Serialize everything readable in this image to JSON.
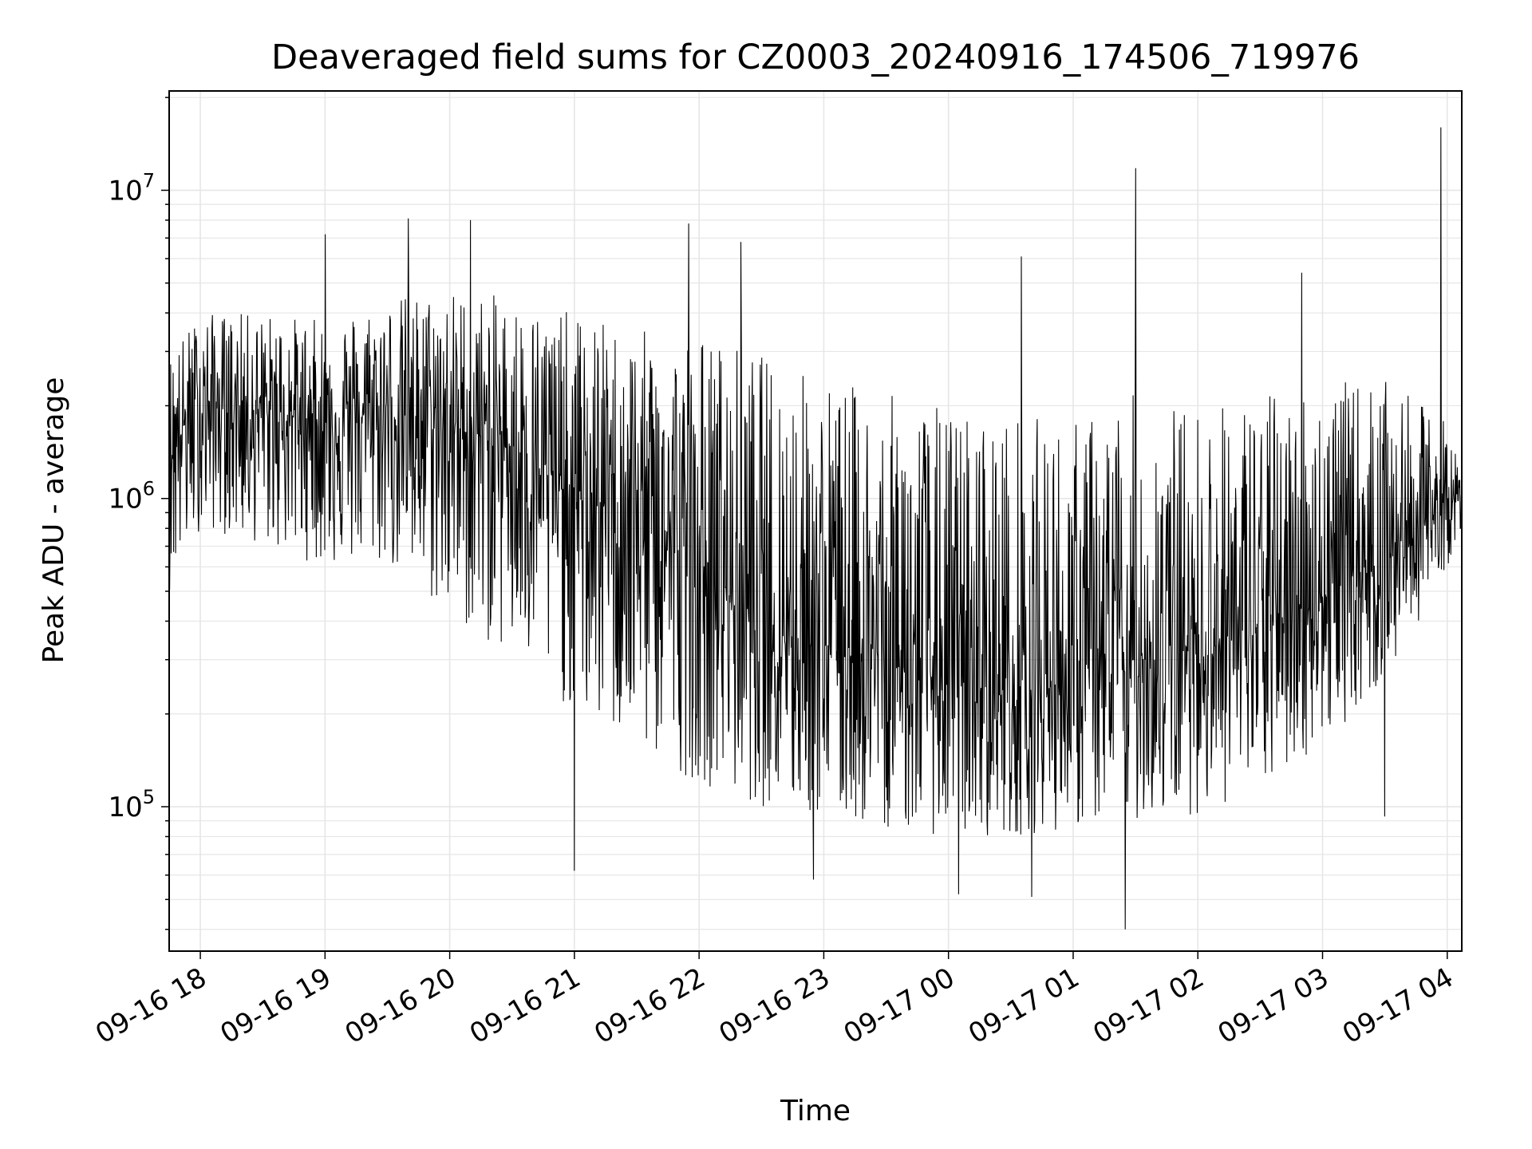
{
  "chart_data": {
    "type": "line",
    "title": "Deaveraged field sums for CZ0003_20240916_174506_719976",
    "xlabel": "Time",
    "ylabel": "Peak ADU - average",
    "y_scale": "log",
    "ylim": [
      34000,
      21000000
    ],
    "xlim": [
      "2024-09-16T17:45",
      "2024-09-17T04:07"
    ],
    "grid": true,
    "line_color": "#000000",
    "grid_color": "#e6e6e6",
    "x_ticks": [
      {
        "t": "2024-09-16T18:00",
        "label": "09-16 18"
      },
      {
        "t": "2024-09-16T19:00",
        "label": "09-16 19"
      },
      {
        "t": "2024-09-16T20:00",
        "label": "09-16 20"
      },
      {
        "t": "2024-09-16T21:00",
        "label": "09-16 21"
      },
      {
        "t": "2024-09-16T22:00",
        "label": "09-16 22"
      },
      {
        "t": "2024-09-16T23:00",
        "label": "09-16 23"
      },
      {
        "t": "2024-09-17T00:00",
        "label": "09-17 00"
      },
      {
        "t": "2024-09-17T01:00",
        "label": "09-17 01"
      },
      {
        "t": "2024-09-17T02:00",
        "label": "09-17 02"
      },
      {
        "t": "2024-09-17T03:00",
        "label": "09-17 03"
      },
      {
        "t": "2024-09-17T04:00",
        "label": "09-17 04"
      }
    ],
    "y_ticks": [
      {
        "value": 100000,
        "base": "10",
        "exp": "5"
      },
      {
        "value": 1000000,
        "base": "10",
        "exp": "6"
      },
      {
        "value": 10000000,
        "base": "10",
        "exp": "7"
      }
    ],
    "series": [
      {
        "x": [
          "2024-09-16T17:45",
          "2024-09-16T18:00",
          "2024-09-16T18:30",
          "2024-09-16T19:00",
          "2024-09-16T19:30",
          "2024-09-16T20:00",
          "2024-09-16T20:30",
          "2024-09-16T21:00",
          "2024-09-16T21:30",
          "2024-09-16T22:00",
          "2024-09-16T22:30",
          "2024-09-16T23:00",
          "2024-09-16T23:30",
          "2024-09-17T00:00",
          "2024-09-17T00:30",
          "2024-09-17T01:00",
          "2024-09-17T01:30",
          "2024-09-17T02:00",
          "2024-09-17T02:30",
          "2024-09-17T03:00",
          "2024-09-17T03:30",
          "2024-09-17T04:00",
          "2024-09-17T04:07"
        ],
        "y_median": [
          1500000,
          2000000,
          1900000,
          1800000,
          1900000,
          1700000,
          1500000,
          1000000,
          900000,
          600000,
          400000,
          350000,
          300000,
          250000,
          230000,
          260000,
          300000,
          330000,
          370000,
          480000,
          650000,
          950000,
          1000000
        ],
        "y_low": [
          500000,
          800000,
          700000,
          600000,
          600000,
          400000,
          300000,
          200000,
          150000,
          120000,
          100000,
          90000,
          85000,
          80000,
          80000,
          85000,
          90000,
          95000,
          110000,
          160000,
          250000,
          600000,
          800000
        ],
        "y_high": [
          3000000,
          4000000,
          4000000,
          3800000,
          4500000,
          4800000,
          4500000,
          4000000,
          3500000,
          3500000,
          3000000,
          2500000,
          2200000,
          2000000,
          1900000,
          1800000,
          2200000,
          2000000,
          2200000,
          2400000,
          2400000,
          1800000,
          1200000
        ],
        "peaks": [
          {
            "t": "2024-09-16T19:00",
            "y": 7200000
          },
          {
            "t": "2024-09-16T19:40",
            "y": 8100000
          },
          {
            "t": "2024-09-16T20:10",
            "y": 8000000
          },
          {
            "t": "2024-09-16T21:55",
            "y": 7800000
          },
          {
            "t": "2024-09-16T22:20",
            "y": 6800000
          },
          {
            "t": "2024-09-17T00:35",
            "y": 6100000
          },
          {
            "t": "2024-09-17T01:30",
            "y": 11800000
          },
          {
            "t": "2024-09-17T02:50",
            "y": 5400000
          },
          {
            "t": "2024-09-17T03:57",
            "y": 16000000
          }
        ],
        "troughs": [
          {
            "t": "2024-09-16T21:00",
            "y": 62000
          },
          {
            "t": "2024-09-16T22:55",
            "y": 58000
          },
          {
            "t": "2024-09-17T00:05",
            "y": 52000
          },
          {
            "t": "2024-09-17T00:40",
            "y": 51000
          },
          {
            "t": "2024-09-17T01:25",
            "y": 40000
          },
          {
            "t": "2024-09-17T03:30",
            "y": 93000
          }
        ]
      }
    ]
  }
}
